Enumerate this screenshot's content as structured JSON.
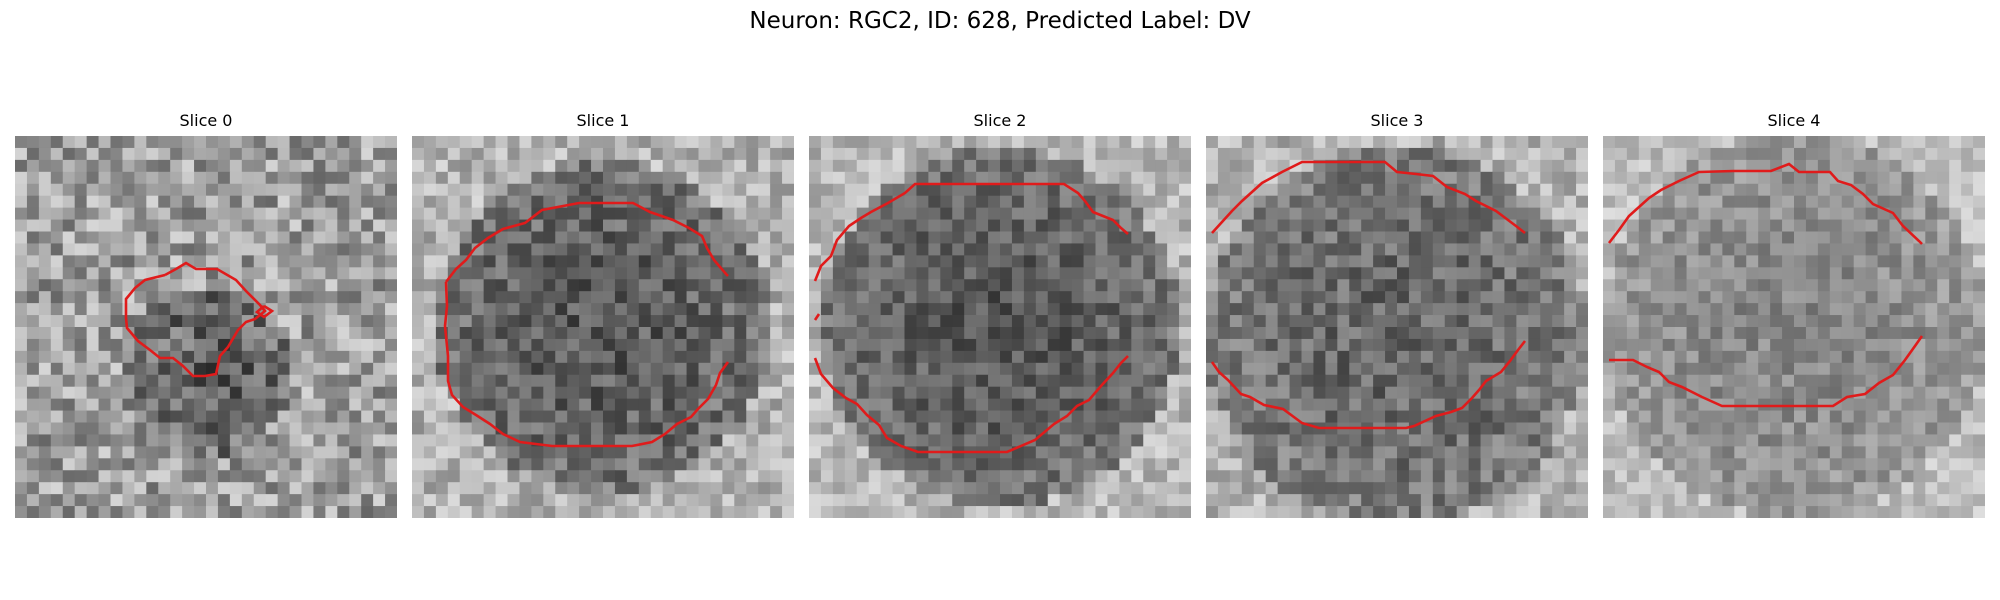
{
  "figure": {
    "title": "Neuron: RGC2, ID: 628, Predicted Label: DV"
  },
  "colors": {
    "contour": "#e01b1b",
    "background": "#ffffff"
  },
  "slices": [
    {
      "title": "Slice 0"
    },
    {
      "title": "Slice 1"
    },
    {
      "title": "Slice 2"
    },
    {
      "title": "Slice 3"
    },
    {
      "title": "Slice 4"
    }
  ]
}
